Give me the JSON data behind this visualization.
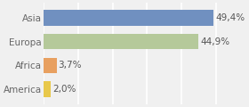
{
  "categories": [
    "America",
    "Africa",
    "Europa",
    "Asia"
  ],
  "values": [
    2.0,
    3.7,
    44.9,
    49.4
  ],
  "bar_colors": [
    "#e8c84a",
    "#e8a060",
    "#b5c99a",
    "#7090c0"
  ],
  "label_texts": [
    "2,0%",
    "3,7%",
    "44,9%",
    "49,4%"
  ],
  "background_color": "#f0f0f0",
  "bar_height": 0.65,
  "xlim": [
    0,
    58
  ],
  "label_fontsize": 7.5,
  "tick_fontsize": 7.5,
  "grid_color": "#ffffff",
  "grid_lw": 1.2,
  "label_color": "#555555",
  "tick_color": "#666666"
}
